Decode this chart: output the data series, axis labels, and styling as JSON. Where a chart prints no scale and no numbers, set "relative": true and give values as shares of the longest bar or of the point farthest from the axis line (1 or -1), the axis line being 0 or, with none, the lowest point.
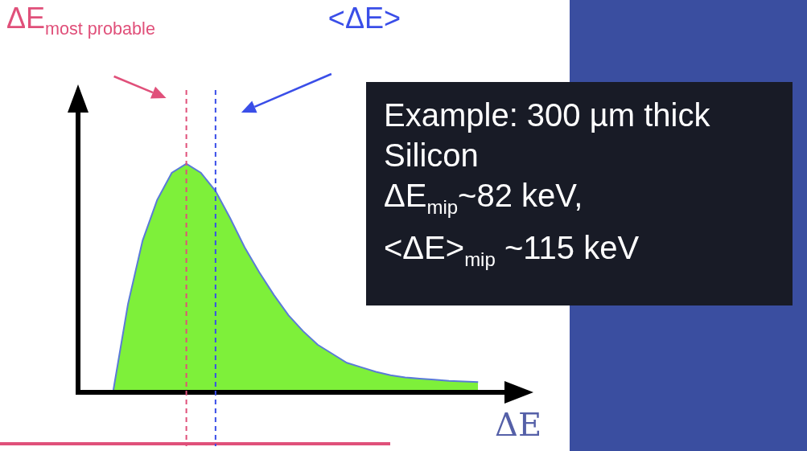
{
  "chart_data": {
    "type": "area",
    "relative": true,
    "xlabel": "ΔE",
    "marker": "none",
    "categories": [
      null,
      null,
      null,
      null,
      null,
      null,
      null,
      null,
      null,
      null,
      null,
      null,
      null,
      null,
      null,
      null,
      null,
      null,
      null,
      null,
      null,
      null,
      null,
      null,
      null,
      null
    ],
    "values": [
      0,
      0.38,
      0.66,
      0.84,
      0.96,
      1.0,
      0.96,
      0.88,
      0.76,
      0.63,
      0.52,
      0.42,
      0.33,
      0.26,
      0.2,
      0.16,
      0.12,
      0.1,
      0.08,
      0.065,
      0.055,
      0.05,
      0.045,
      0.04,
      0.037,
      0.035
    ],
    "color": "#7ef03a",
    "annotations": [
      "ΔE$_{most probable}$",
      "<ΔE>",
      "Example: 300 µm thick Silicon",
      "ΔE$_{mip}$~82 keV,",
      "<ΔE>$_{mip}$ ~115 keV"
    ]
  }
}
